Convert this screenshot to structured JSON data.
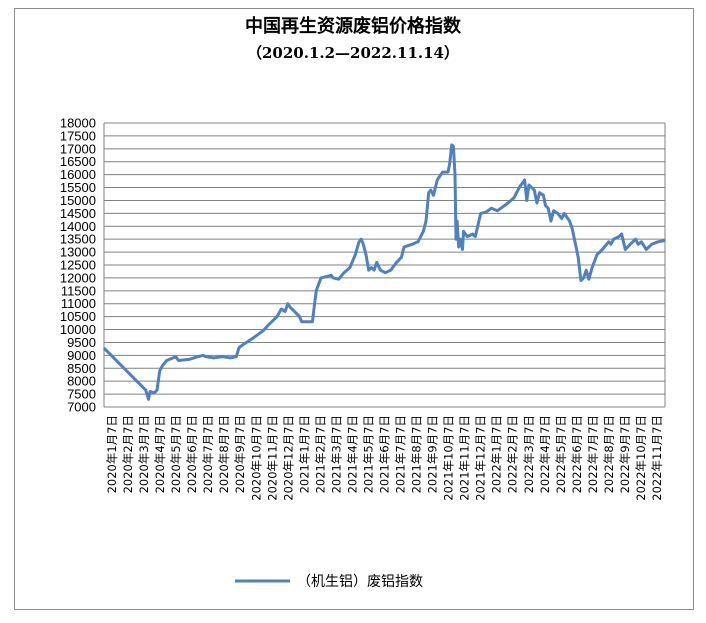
{
  "chart_data": {
    "type": "line",
    "title": "中国再生资源废铝价格指数",
    "subtitle": "（2020.1.2—2022.11.14）",
    "ylim": [
      7000,
      18000
    ],
    "ytick_step": 500,
    "grid": true,
    "legend_position": "bottom",
    "x_tick_labels": [
      "2020年1月7日",
      "2020年2月7日",
      "2020年3月7日",
      "2020年4月7日",
      "2020年5月7日",
      "2020年6月7日",
      "2020年7月7日",
      "2020年8月7日",
      "2020年9月7日",
      "2020年10月7日",
      "2020年11月7日",
      "2020年12月7日",
      "2021年1月7日",
      "2021年2月7日",
      "2021年3月7日",
      "2021年4月7日",
      "2021年5月7日",
      "2021年6月7日",
      "2021年7月7日",
      "2021年8月7日",
      "2021年9月7日",
      "2021年10月7日",
      "2021年11月7日",
      "2021年12月7日",
      "2022年1月7日",
      "2022年2月7日",
      "2022年3月7日",
      "2022年4月7日",
      "2022年5月7日",
      "2022年6月7日",
      "2022年7月7日",
      "2022年8月7日",
      "2022年9月7日",
      "2022年10月7日",
      "2022年11月7日"
    ],
    "x_start_date": "2020-01-02",
    "series": [
      {
        "name": "（机生铝）废铝指数",
        "color": "#4f81bd",
        "points": [
          [
            "2020-01-02",
            9280
          ],
          [
            "2020-03-20",
            7650
          ],
          [
            "2020-03-25",
            7300
          ],
          [
            "2020-03-28",
            7600
          ],
          [
            "2020-04-05",
            7550
          ],
          [
            "2020-04-10",
            7650
          ],
          [
            "2020-04-15",
            8400
          ],
          [
            "2020-04-20",
            8600
          ],
          [
            "2020-04-28",
            8800
          ],
          [
            "2020-05-10",
            8900
          ],
          [
            "2020-05-15",
            8950
          ],
          [
            "2020-05-20",
            8800
          ],
          [
            "2020-06-10",
            8850
          ],
          [
            "2020-06-25",
            8950
          ],
          [
            "2020-07-05",
            9000
          ],
          [
            "2020-07-10",
            8950
          ],
          [
            "2020-07-25",
            8900
          ],
          [
            "2020-08-10",
            8950
          ],
          [
            "2020-08-25",
            8900
          ],
          [
            "2020-09-05",
            8950
          ],
          [
            "2020-09-10",
            9300
          ],
          [
            "2020-09-20",
            9450
          ],
          [
            "2020-10-01",
            9600
          ],
          [
            "2020-10-15",
            9800
          ],
          [
            "2020-10-25",
            9950
          ],
          [
            "2020-11-05",
            10200
          ],
          [
            "2020-11-20",
            10500
          ],
          [
            "2020-11-28",
            10800
          ],
          [
            "2020-12-05",
            10700
          ],
          [
            "2020-12-10",
            11000
          ],
          [
            "2020-12-15",
            10850
          ],
          [
            "2020-12-25",
            10650
          ],
          [
            "2021-01-01",
            10500
          ],
          [
            "2021-01-05",
            10300
          ],
          [
            "2021-01-25",
            10300
          ],
          [
            "2021-02-01",
            11500
          ],
          [
            "2021-02-10",
            12000
          ],
          [
            "2021-02-20",
            12050
          ],
          [
            "2021-03-01",
            12100
          ],
          [
            "2021-03-05",
            12000
          ],
          [
            "2021-03-15",
            11950
          ],
          [
            "2021-03-25",
            12200
          ],
          [
            "2021-04-05",
            12400
          ],
          [
            "2021-04-15",
            12900
          ],
          [
            "2021-04-22",
            13400
          ],
          [
            "2021-04-26",
            13500
          ],
          [
            "2021-04-30",
            13300
          ],
          [
            "2021-05-05",
            12900
          ],
          [
            "2021-05-10",
            12300
          ],
          [
            "2021-05-15",
            12400
          ],
          [
            "2021-05-20",
            12300
          ],
          [
            "2021-05-25",
            12600
          ],
          [
            "2021-06-01",
            12300
          ],
          [
            "2021-06-10",
            12200
          ],
          [
            "2021-06-20",
            12300
          ],
          [
            "2021-07-01",
            12600
          ],
          [
            "2021-07-10",
            12800
          ],
          [
            "2021-07-15",
            13200
          ],
          [
            "2021-07-30",
            13300
          ],
          [
            "2021-08-10",
            13400
          ],
          [
            "2021-08-20",
            13800
          ],
          [
            "2021-08-25",
            14200
          ],
          [
            "2021-08-30",
            15300
          ],
          [
            "2021-09-03",
            15400
          ],
          [
            "2021-09-08",
            15200
          ],
          [
            "2021-09-15",
            15800
          ],
          [
            "2021-09-25",
            16100
          ],
          [
            "2021-10-05",
            16100
          ],
          [
            "2021-10-08",
            16400
          ],
          [
            "2021-10-12",
            17150
          ],
          [
            "2021-10-15",
            17100
          ],
          [
            "2021-10-18",
            16000
          ],
          [
            "2021-10-20",
            13500
          ],
          [
            "2021-10-22",
            14200
          ],
          [
            "2021-10-25",
            13200
          ],
          [
            "2021-10-28",
            13500
          ],
          [
            "2021-11-01",
            13100
          ],
          [
            "2021-11-03",
            13800
          ],
          [
            "2021-11-10",
            13600
          ],
          [
            "2021-11-20",
            13700
          ],
          [
            "2021-11-25",
            13600
          ],
          [
            "2021-12-05",
            14500
          ],
          [
            "2021-12-15",
            14550
          ],
          [
            "2021-12-25",
            14700
          ],
          [
            "2022-01-05",
            14600
          ],
          [
            "2022-01-15",
            14750
          ],
          [
            "2022-01-25",
            14900
          ],
          [
            "2022-02-05",
            15100
          ],
          [
            "2022-02-15",
            15500
          ],
          [
            "2022-02-25",
            15800
          ],
          [
            "2022-03-01",
            15000
          ],
          [
            "2022-03-05",
            15600
          ],
          [
            "2022-03-10",
            15500
          ],
          [
            "2022-03-15",
            15400
          ],
          [
            "2022-03-20",
            14900
          ],
          [
            "2022-03-25",
            15300
          ],
          [
            "2022-04-01",
            15200
          ],
          [
            "2022-04-05",
            14800
          ],
          [
            "2022-04-10",
            14700
          ],
          [
            "2022-04-15",
            14200
          ],
          [
            "2022-04-20",
            14600
          ],
          [
            "2022-04-28",
            14500
          ],
          [
            "2022-05-05",
            14300
          ],
          [
            "2022-05-10",
            14500
          ],
          [
            "2022-05-20",
            14200
          ],
          [
            "2022-05-25",
            13900
          ],
          [
            "2022-05-30",
            13400
          ],
          [
            "2022-06-05",
            12800
          ],
          [
            "2022-06-10",
            11900
          ],
          [
            "2022-06-15",
            12000
          ],
          [
            "2022-06-20",
            12300
          ],
          [
            "2022-06-25",
            11950
          ],
          [
            "2022-07-01",
            12400
          ],
          [
            "2022-07-10",
            12900
          ],
          [
            "2022-07-20",
            13100
          ],
          [
            "2022-08-01",
            13400
          ],
          [
            "2022-08-05",
            13300
          ],
          [
            "2022-08-10",
            13500
          ],
          [
            "2022-08-20",
            13600
          ],
          [
            "2022-08-25",
            13700
          ],
          [
            "2022-09-01",
            13100
          ],
          [
            "2022-09-10",
            13300
          ],
          [
            "2022-09-20",
            13500
          ],
          [
            "2022-09-25",
            13300
          ],
          [
            "2022-10-01",
            13400
          ],
          [
            "2022-10-10",
            13100
          ],
          [
            "2022-10-20",
            13300
          ],
          [
            "2022-11-01",
            13400
          ],
          [
            "2022-11-14",
            13450
          ]
        ]
      }
    ]
  }
}
